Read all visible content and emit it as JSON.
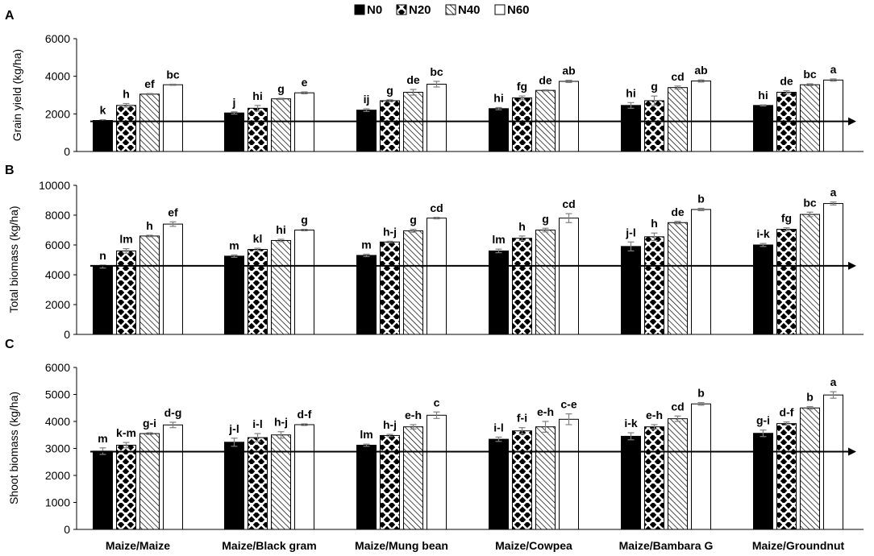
{
  "legend": [
    {
      "key": "N0",
      "label": "N0"
    },
    {
      "key": "N20",
      "label": "N20"
    },
    {
      "key": "N40",
      "label": "N40"
    },
    {
      "key": "N60",
      "label": "N60"
    }
  ],
  "colors": {
    "axis": "#000000",
    "bar_fill_N0": "#000000",
    "bar_fill_other": "#ffffff",
    "errorbar": "#7f7f7f"
  },
  "categories": [
    "Maize/Maize",
    "Maize/Black gram",
    "Maize/Mung bean",
    "Maize/Cowpea",
    "Maize/Bambara G",
    "Maize/Groundnut"
  ],
  "chart_data": [
    {
      "type": "bar",
      "panel_label": "A",
      "ylabel": "Grain yield (kg/ha)",
      "ylim": [
        0,
        6000
      ],
      "yticks": [
        0,
        2000,
        4000,
        6000
      ],
      "reference_arrow_value": 1600,
      "series": [
        {
          "name": "N0",
          "values": [
            1650,
            2050,
            2200,
            2280,
            2450,
            2450
          ],
          "errors": [
            40,
            60,
            70,
            60,
            150,
            30
          ],
          "letters": [
            "k",
            "j",
            "ij",
            "hi",
            "hi",
            "hi"
          ]
        },
        {
          "name": "N20",
          "values": [
            2450,
            2300,
            2700,
            2850,
            2700,
            3150
          ],
          "errors": [
            100,
            150,
            50,
            100,
            250,
            80
          ],
          "letters": [
            "h",
            "hi",
            "g",
            "fg",
            "g",
            "de"
          ]
        },
        {
          "name": "N40",
          "values": [
            3050,
            2800,
            3150,
            3250,
            3400,
            3550
          ],
          "errors": [
            30,
            30,
            150,
            30,
            80,
            50
          ],
          "letters": [
            "ef",
            "g",
            "de",
            "de",
            "cd",
            "bc"
          ]
        },
        {
          "name": "N60",
          "values": [
            3550,
            3120,
            3580,
            3730,
            3750,
            3800
          ],
          "errors": [
            30,
            50,
            150,
            60,
            60,
            60
          ],
          "letters": [
            "bc",
            "e",
            "bc",
            "ab",
            "ab",
            "a"
          ]
        }
      ]
    },
    {
      "type": "bar",
      "panel_label": "B",
      "ylabel": "Total biomass (kg/ha)",
      "ylim": [
        0,
        10000
      ],
      "yticks": [
        0,
        2000,
        4000,
        6000,
        8000,
        10000
      ],
      "reference_arrow_value": 4600,
      "series": [
        {
          "name": "N0",
          "values": [
            4550,
            5250,
            5300,
            5600,
            5900,
            6000
          ],
          "errors": [
            100,
            80,
            80,
            120,
            300,
            100
          ],
          "letters": [
            "n",
            "m",
            "m",
            "lm",
            "j-l",
            "i-k"
          ]
        },
        {
          "name": "N20",
          "values": [
            5600,
            5700,
            6200,
            6450,
            6550,
            7050
          ],
          "errors": [
            150,
            80,
            50,
            150,
            250,
            100
          ],
          "letters": [
            "lm",
            "kl",
            "h-j",
            "h",
            "h",
            "fg"
          ]
        },
        {
          "name": "N40",
          "values": [
            6600,
            6300,
            6950,
            7000,
            7500,
            8050
          ],
          "errors": [
            50,
            80,
            100,
            120,
            80,
            150
          ],
          "letters": [
            "h",
            "hi",
            "g",
            "g",
            "de",
            "bc"
          ]
        },
        {
          "name": "N60",
          "values": [
            7400,
            7000,
            7800,
            7800,
            8380,
            8780
          ],
          "errors": [
            150,
            50,
            50,
            300,
            80,
            100
          ],
          "letters": [
            "ef",
            "g",
            "cd",
            "cd",
            "b",
            "a"
          ]
        }
      ]
    },
    {
      "type": "bar",
      "panel_label": "C",
      "ylabel": "Shoot biomass (kg/ha)",
      "ylim": [
        0,
        6000
      ],
      "yticks": [
        0,
        1000,
        2000,
        3000,
        4000,
        5000,
        6000
      ],
      "reference_arrow_value": 2880,
      "series": [
        {
          "name": "N0",
          "values": [
            2900,
            3230,
            3120,
            3340,
            3450,
            3560
          ],
          "errors": [
            120,
            150,
            40,
            80,
            130,
            120
          ],
          "letters": [
            "m",
            "j-l",
            "lm",
            "i-l",
            "i-k",
            "g-i"
          ]
        },
        {
          "name": "N20",
          "values": [
            3120,
            3400,
            3480,
            3650,
            3800,
            3920
          ],
          "errors": [
            100,
            150,
            40,
            120,
            80,
            60
          ],
          "letters": [
            "k-m",
            "i-l",
            "h-j",
            "f-i",
            "e-h",
            "d-f"
          ]
        },
        {
          "name": "N40",
          "values": [
            3550,
            3500,
            3800,
            3800,
            4100,
            4500
          ],
          "errors": [
            30,
            120,
            80,
            200,
            100,
            50
          ],
          "letters": [
            "g-i",
            "h-j",
            "e-h",
            "e-h",
            "cd",
            "b"
          ]
        },
        {
          "name": "N60",
          "values": [
            3870,
            3880,
            4230,
            4080,
            4650,
            4980
          ],
          "errors": [
            100,
            30,
            120,
            200,
            50,
            120
          ],
          "letters": [
            "d-g",
            "d-f",
            "c",
            "c-e",
            "b",
            "a"
          ]
        }
      ]
    }
  ]
}
